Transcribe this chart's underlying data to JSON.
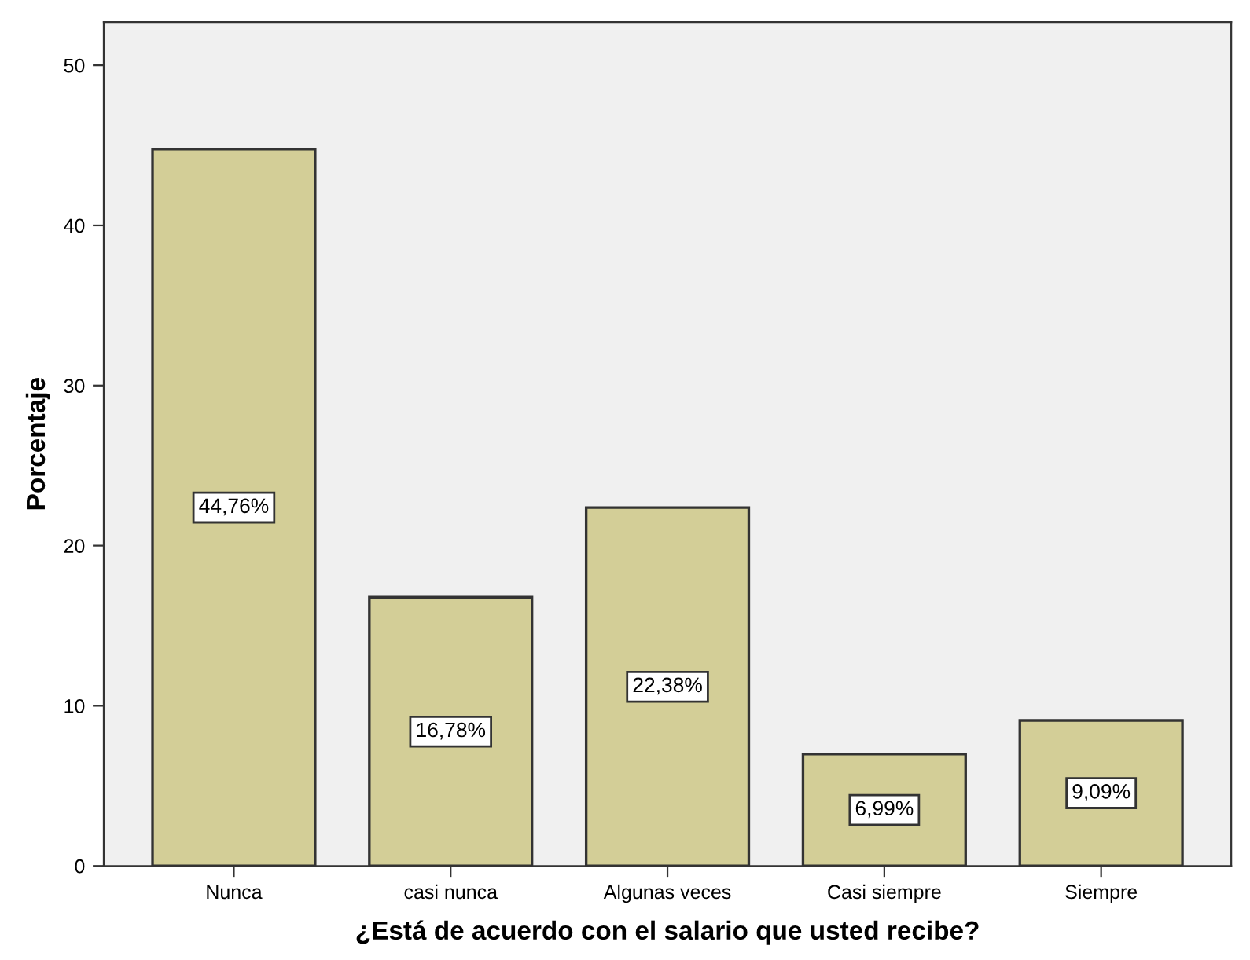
{
  "chart_data": {
    "type": "bar",
    "xlabel": "¿Está de acuerdo con el salario que usted recibe?",
    "ylabel": "Porcentaje",
    "categories": [
      "Nunca",
      "casi nunca",
      "Algunas veces",
      "Casi siempre",
      "Siempre"
    ],
    "values": [
      44.76,
      16.78,
      22.38,
      6.99,
      9.09
    ],
    "value_labels": [
      "44,76%",
      "16,78%",
      "22,38%",
      "6,99%",
      "9,09%"
    ],
    "color": "#d3ce97",
    "ylim": [
      0,
      52.7
    ],
    "yticks": [
      0,
      10,
      20,
      30,
      40,
      50
    ],
    "grid": false
  }
}
